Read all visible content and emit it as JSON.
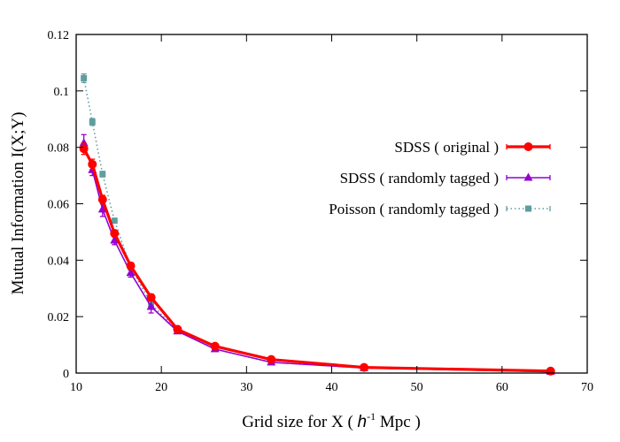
{
  "chart_data": {
    "type": "line",
    "xlabel_main": "Grid size for X ( ",
    "xlabel_unit_h": "h",
    "xlabel_unit_exp": "-1",
    "xlabel_unit_tail": " Mpc )",
    "ylabel": "Mutual Information I(X;Y)",
    "xlim": [
      10,
      70
    ],
    "ylim": [
      0,
      0.12
    ],
    "xticks": [
      10,
      20,
      30,
      40,
      50,
      60,
      70
    ],
    "yticks": [
      0,
      0.02,
      0.04,
      0.06,
      0.08,
      0.1,
      0.12
    ],
    "x": [
      10.9,
      11.9,
      13.1,
      14.5,
      16.4,
      18.8,
      21.9,
      26.3,
      32.9,
      43.8,
      65.7
    ],
    "legend_position": "right",
    "grid": false,
    "series": [
      {
        "name": "SDSS ( original )",
        "color": "#ff0000",
        "style": "solid-thick",
        "marker": "circle",
        "values": [
          0.0795,
          0.074,
          0.0615,
          0.0495,
          0.038,
          0.0268,
          0.0155,
          0.0095,
          0.0048,
          0.002,
          0.0007
        ],
        "errors": [
          0.002,
          0.0018,
          0.0015,
          0.0012,
          0.0012,
          0.0012,
          0.0008,
          0.0006,
          0.0006,
          0.0004,
          0.0003
        ]
      },
      {
        "name": "SDSS ( randomly tagged )",
        "color": "#9400d3",
        "style": "solid",
        "marker": "triangle",
        "values": [
          0.0815,
          0.072,
          0.058,
          0.047,
          0.0355,
          0.0235,
          0.0148,
          0.0085,
          0.0038,
          0.0018,
          0.0005
        ],
        "errors": [
          0.003,
          0.002,
          0.0025,
          0.0015,
          0.0015,
          0.0022,
          0.0008,
          0.0006,
          0.0005,
          0.0003,
          0.0003
        ]
      },
      {
        "name": "Poisson ( randomly tagged )",
        "color": "#5f9ea0",
        "style": "dotted",
        "marker": "square",
        "values": [
          0.1045,
          0.089,
          0.0705,
          0.054,
          0.0375,
          0.0245,
          0.015,
          0.0085,
          0.0038,
          0.0018,
          0.0005
        ],
        "errors": [
          0.0015,
          0.0012,
          0.001,
          0.0008,
          0.0008,
          0.0008,
          0.0005,
          0.0004,
          0.0003,
          0.0002,
          0.0002
        ]
      }
    ]
  }
}
